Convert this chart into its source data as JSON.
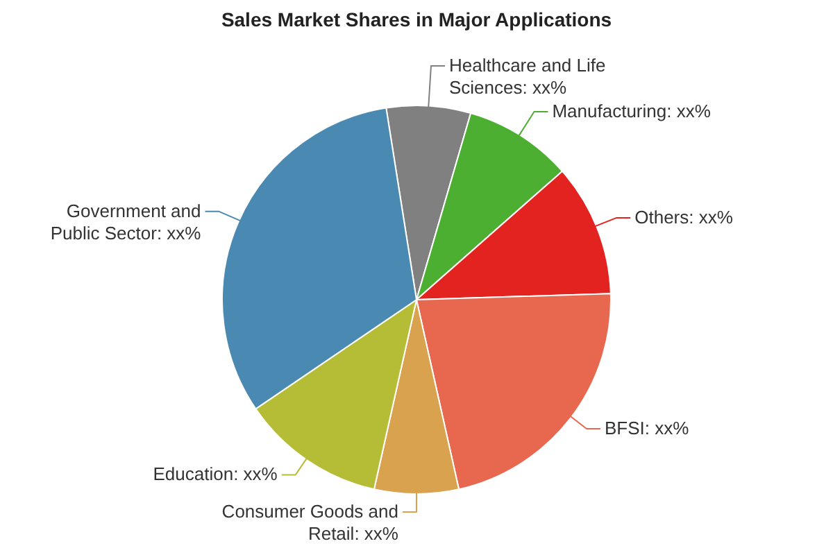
{
  "chart_data": {
    "type": "pie",
    "title": "Sales Market Shares in Major Applications",
    "categories": [
      "Healthcare and Life Sciences",
      "Manufacturing",
      "Others",
      "BFSI",
      "Consumer Goods and Retail",
      "Education",
      "Government and Public Sector"
    ],
    "values": [
      7,
      9,
      11,
      22,
      7,
      12,
      32
    ],
    "value_labels": [
      "xx%",
      "xx%",
      "xx%",
      "xx%",
      "xx%",
      "xx%",
      "xx%"
    ],
    "colors": [
      "#808080",
      "#4caf32",
      "#e2231f",
      "#e8684f",
      "#d9a24e",
      "#b5bd37",
      "#4a89b1"
    ],
    "legend": false
  }
}
